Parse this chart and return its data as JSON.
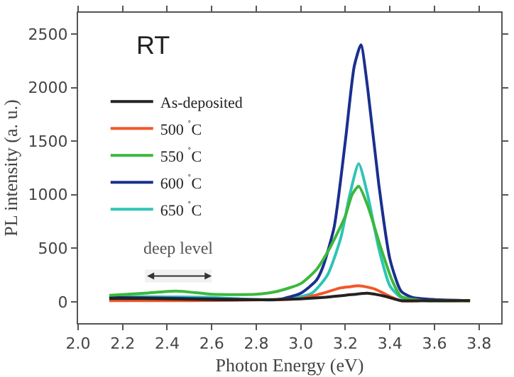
{
  "chart_data": {
    "type": "line",
    "xlabel": "Photon Energy (eV)",
    "ylabel": "PL intensity (a. u.)",
    "xlim": [
      2.0,
      3.9
    ],
    "xticks": [
      {
        "value": 2,
        "label": "2.0"
      },
      2.2,
      2.4,
      2.6,
      2.8,
      {
        "value": 3,
        "label": "3.0"
      },
      3.2,
      3.4,
      3.6,
      3.8
    ],
    "ylim": [
      -200,
      2700
    ],
    "yticks": [
      0,
      500,
      1000,
      1500,
      2000,
      2500
    ],
    "grid": false,
    "legend": "top left",
    "marker": "none",
    "line_style": "solid",
    "annotations": [
      "RT"
    ],
    "bands": [
      {
        "axis": "x",
        "from": 2.3,
        "to": 2.6,
        "label": "deep level"
      }
    ],
    "series": [
      {
        "name": "As-deposited",
        "color": "#222222",
        "x": [
          2.14,
          2.3,
          2.6,
          2.9,
          3.1,
          3.2,
          3.3,
          3.38,
          3.45,
          3.55,
          3.76
        ],
        "values": [
          30,
          30,
          20,
          20,
          40,
          60,
          80,
          50,
          10,
          10,
          10
        ]
      },
      {
        "name": "500 $^{˚}$C",
        "color": "#f4562a",
        "x": [
          2.14,
          2.5,
          2.9,
          3.0,
          3.1,
          3.18,
          3.22,
          3.26,
          3.33,
          3.4,
          3.45,
          3.55,
          3.76
        ],
        "values": [
          10,
          10,
          20,
          30,
          80,
          130,
          140,
          150,
          120,
          50,
          10,
          10,
          10
        ]
      },
      {
        "name": "550 $^{˚}$C",
        "color": "#3cb83c",
        "x": [
          2.14,
          2.3,
          2.44,
          2.6,
          2.8,
          2.9,
          3.0,
          3.07,
          3.13,
          3.2,
          3.23,
          3.26,
          3.3,
          3.36,
          3.41,
          3.45,
          3.55,
          3.76
        ],
        "values": [
          60,
          80,
          100,
          70,
          70,
          100,
          170,
          300,
          500,
          800,
          1000,
          1080,
          900,
          500,
          200,
          50,
          10,
          10
        ]
      },
      {
        "name": "600 $^{˚}$C",
        "color": "#1a2f8f",
        "x": [
          2.14,
          2.5,
          2.8,
          2.9,
          3.0,
          3.07,
          3.1,
          3.15,
          3.2,
          3.24,
          3.27,
          3.3,
          3.35,
          3.4,
          3.45,
          3.5,
          3.6,
          3.76
        ],
        "values": [
          40,
          30,
          20,
          20,
          80,
          200,
          330,
          700,
          1500,
          2200,
          2400,
          2000,
          1100,
          400,
          100,
          40,
          20,
          10
        ]
      },
      {
        "name": "650 $^{˚}$C",
        "color": "#2ec4b6",
        "x": [
          2.14,
          2.6,
          2.8,
          2.95,
          3.05,
          3.12,
          3.18,
          3.22,
          3.26,
          3.3,
          3.35,
          3.4,
          3.45,
          3.55,
          3.76
        ],
        "values": [
          50,
          40,
          20,
          30,
          80,
          250,
          600,
          1000,
          1290,
          1000,
          500,
          150,
          40,
          20,
          10
        ]
      }
    ]
  }
}
